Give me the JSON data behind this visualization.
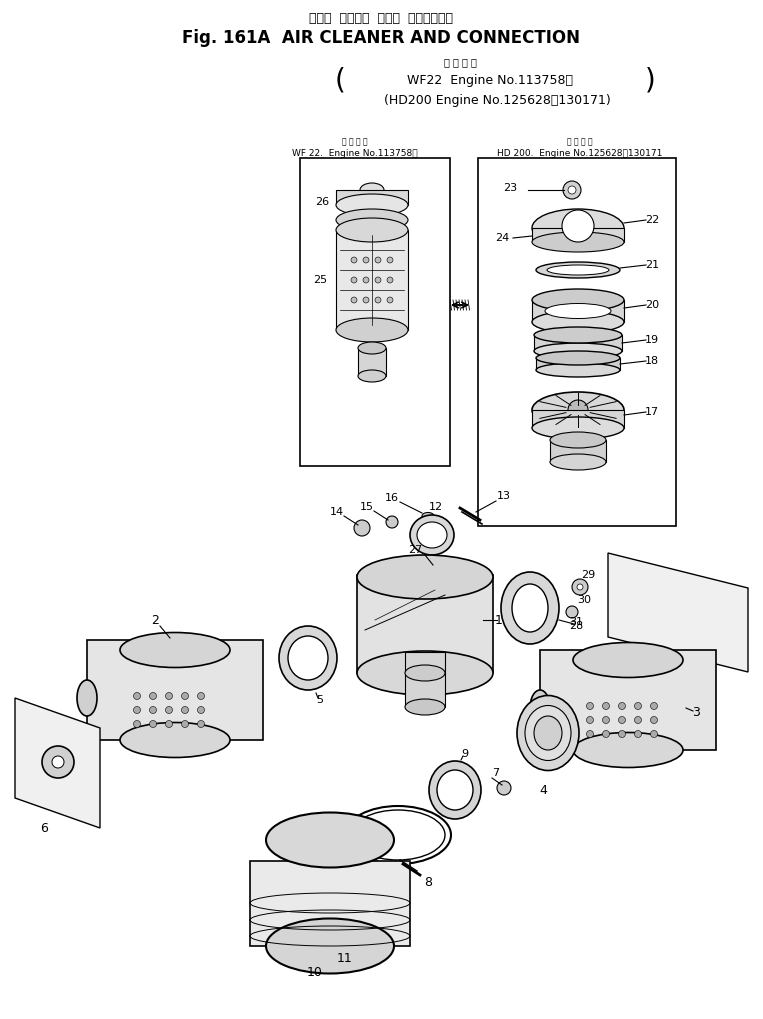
{
  "title_japanese": "エアー  クリーナ  および  コネクション",
  "title_english": "Fig. 161A  AIR CLEANER AND CONNECTION",
  "subtitle_japanese": "適 用 号 機",
  "line1": "WF22  Engine No.113758～",
  "line2": "(HD200 Engine No.125628～130171)",
  "wf22_label": "WF 22.  Engine No.113758～",
  "hd200_label": "HD 200.  Engine No.125628～130171",
  "bg_color": "#ffffff",
  "line_color": "#000000",
  "fig_width": 7.63,
  "fig_height": 10.19
}
